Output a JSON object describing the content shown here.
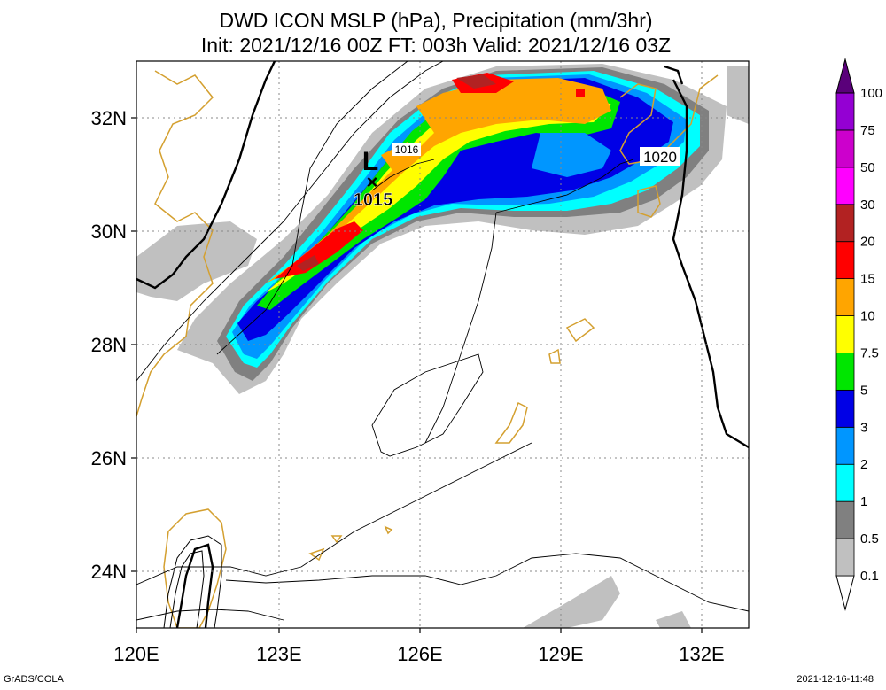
{
  "title": {
    "line1": "DWD ICON MSLP (hPa), Precipitation (mm/3hr)",
    "line2": "Init: 2021/12/16 00Z  FT: 003h  Valid: 2021/12/16 03Z"
  },
  "axes": {
    "x_ticks": [
      "120E",
      "123E",
      "126E",
      "129E",
      "132E"
    ],
    "y_ticks": [
      "24N",
      "26N",
      "28N",
      "30N",
      "32N"
    ],
    "lon_range": [
      120,
      133
    ],
    "lat_range": [
      23,
      33
    ]
  },
  "colorbar": {
    "levels": [
      "0.1",
      "0.5",
      "1",
      "2",
      "3",
      "5",
      "7.5",
      "10",
      "15",
      "20",
      "30",
      "50",
      "75",
      "100"
    ],
    "colors": [
      "#ffffff",
      "#c0c0c0",
      "#808080",
      "#00ffff",
      "#0096ff",
      "#0000e6",
      "#00e600",
      "#ffff00",
      "#ffa500",
      "#ff0000",
      "#b22222",
      "#ff00ff",
      "#cc00cc",
      "#9400d3",
      "#5a007a"
    ]
  },
  "annotations": {
    "low_symbol": "L",
    "low_marker": "×",
    "low_pressure": "1015",
    "isobar_1016": "1016",
    "isobar_1020": "1020"
  },
  "footer": {
    "credit": "GrADS/COLA",
    "timestamp": "2021-12-16-11:48"
  }
}
